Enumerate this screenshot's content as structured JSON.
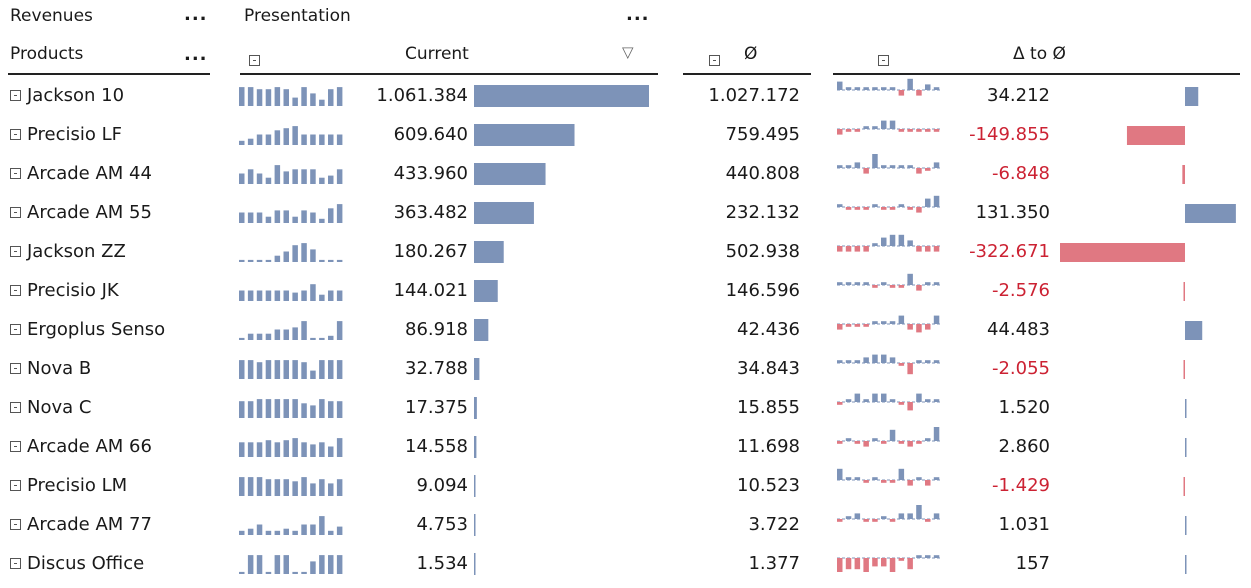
{
  "header": {
    "revenues": "Revenues",
    "revenues_more": "...",
    "products": "Products",
    "products_more": "...",
    "presentation": "Presentation",
    "presentation_more": "...",
    "current": "Current",
    "avg": "Ø",
    "delta": "Δ to Ø",
    "sort_icon": "▽"
  },
  "colors": {
    "positive": "#7d93b8",
    "negative": "#e07882",
    "neg_text": "#cc2233"
  },
  "rows": [
    {
      "name": "Jackson 10",
      "current": 1061384,
      "current_label": "1.061.384",
      "avg": 1027172,
      "avg_label": "1.027.172",
      "delta": 34212,
      "delta_label": "34.212",
      "spark": [
        9,
        9,
        8,
        8,
        9,
        8,
        4,
        9,
        6,
        3,
        8,
        9
      ],
      "dev": [
        3,
        1,
        1,
        1,
        1,
        1,
        1,
        -2,
        4,
        -2,
        2,
        1
      ]
    },
    {
      "name": "Precisio LF",
      "current": 609640,
      "current_label": "609.640",
      "avg": 759495,
      "avg_label": "759.495",
      "delta": -149855,
      "delta_label": "-149.855",
      "spark": [
        2,
        3,
        5,
        5,
        7,
        8,
        9,
        5,
        5,
        5,
        5,
        5
      ],
      "dev": [
        -2,
        -1,
        -1,
        1,
        1,
        3,
        3,
        -1,
        -1,
        -1,
        -1,
        -1
      ]
    },
    {
      "name": "Arcade AM 44",
      "current": 433960,
      "current_label": "433.960",
      "avg": 440808,
      "avg_label": "440.808",
      "delta": -6848,
      "delta_label": "-6.848",
      "spark": [
        5,
        7,
        5,
        3,
        9,
        6,
        7,
        7,
        7,
        3,
        4,
        7
      ],
      "dev": [
        1,
        1,
        2,
        -2,
        5,
        1,
        1,
        1,
        1,
        -2,
        -1,
        2
      ]
    },
    {
      "name": "Arcade AM 55",
      "current": 363482,
      "current_label": "363.482",
      "avg": 232132,
      "avg_label": "232.132",
      "delta": 131350,
      "delta_label": "131.350",
      "spark": [
        5,
        5,
        5,
        3,
        6,
        6,
        3,
        6,
        5,
        2,
        7,
        9
      ],
      "dev": [
        1,
        -1,
        -1,
        -1,
        1,
        -1,
        -1,
        1,
        -1,
        -2,
        3,
        4
      ]
    },
    {
      "name": "Jackson ZZ",
      "current": 180267,
      "current_label": "180.267",
      "avg": 502938,
      "avg_label": "502.938",
      "delta": -322671,
      "delta_label": "-322.671",
      "spark": [
        1,
        1,
        1,
        1,
        3,
        5,
        8,
        9,
        6,
        1,
        1,
        1
      ],
      "dev": [
        -2,
        -2,
        -2,
        -2,
        1,
        3,
        4,
        4,
        2,
        -2,
        -2,
        -2
      ]
    },
    {
      "name": "Precisio JK",
      "current": 144021,
      "current_label": "144.021",
      "avg": 146596,
      "avg_label": "146.596",
      "delta": -2576,
      "delta_label": "-2.576",
      "spark": [
        5,
        5,
        5,
        5,
        5,
        5,
        4,
        5,
        8,
        3,
        5,
        5
      ],
      "dev": [
        1,
        1,
        1,
        1,
        -1,
        1,
        -1,
        -1,
        4,
        -2,
        1,
        1
      ]
    },
    {
      "name": "Ergoplus Senso",
      "current": 86918,
      "current_label": "86.918",
      "avg": 42436,
      "avg_label": "42.436",
      "delta": 44483,
      "delta_label": "44.483",
      "spark": [
        1,
        3,
        3,
        3,
        5,
        5,
        6,
        9,
        1,
        1,
        2,
        9
      ],
      "dev": [
        -2,
        -1,
        -1,
        -1,
        1,
        1,
        1,
        3,
        -2,
        -3,
        -2,
        3
      ]
    },
    {
      "name": "Nova B",
      "current": 32788,
      "current_label": "32.788",
      "avg": 34843,
      "avg_label": "34.843",
      "delta": -2055,
      "delta_label": "-2.055",
      "spark": [
        9,
        9,
        8,
        9,
        9,
        9,
        9,
        8,
        4,
        9,
        9,
        9
      ],
      "dev": [
        1,
        1,
        1,
        2,
        3,
        3,
        2,
        -1,
        -4,
        1,
        1,
        1
      ]
    },
    {
      "name": "Nova C",
      "current": 17375,
      "current_label": "17.375",
      "avg": 15855,
      "avg_label": "15.855",
      "delta": 1520,
      "delta_label": "1.520",
      "spark": [
        8,
        8,
        9,
        9,
        9,
        9,
        9,
        7,
        6,
        9,
        8,
        8
      ],
      "dev": [
        -1,
        1,
        3,
        1,
        3,
        3,
        1,
        -1,
        -3,
        3,
        1,
        1
      ]
    },
    {
      "name": "Arcade AM 66",
      "current": 14558,
      "current_label": "14.558",
      "avg": 11698,
      "avg_label": "11.698",
      "delta": 2860,
      "delta_label": "2.860",
      "spark": [
        7,
        7,
        7,
        8,
        7,
        8,
        9,
        7,
        6,
        7,
        5,
        9
      ],
      "dev": [
        -1,
        1,
        -1,
        -2,
        1,
        -1,
        4,
        -1,
        -2,
        -1,
        1,
        5
      ]
    },
    {
      "name": "Precisio LM",
      "current": 9094,
      "current_label": "9.094",
      "avg": 10523,
      "avg_label": "10.523",
      "delta": -1429,
      "delta_label": "-1.429",
      "spark": [
        9,
        9,
        9,
        8,
        8,
        8,
        7,
        9,
        6,
        8,
        6,
        8
      ],
      "dev": [
        4,
        1,
        1,
        -1,
        1,
        -1,
        -1,
        4,
        -2,
        1,
        -2,
        1
      ]
    },
    {
      "name": "Arcade AM 77",
      "current": 4753,
      "current_label": "4.753",
      "avg": 3722,
      "avg_label": "3.722",
      "delta": 1031,
      "delta_label": "1.031",
      "spark": [
        2,
        3,
        5,
        2,
        2,
        3,
        2,
        5,
        5,
        9,
        2,
        4
      ],
      "dev": [
        -1,
        1,
        2,
        -1,
        -1,
        1,
        -1,
        2,
        2,
        5,
        -1,
        2
      ]
    },
    {
      "name": "Discus Office",
      "current": 1534,
      "current_label": "1.534",
      "avg": 1377,
      "avg_label": "1.377",
      "delta": 157,
      "delta_label": "157",
      "spark": [
        1,
        9,
        9,
        1,
        9,
        9,
        1,
        1,
        6,
        9,
        9,
        9
      ],
      "dev": [
        -5,
        -4,
        -4,
        -5,
        -3,
        -3,
        -5,
        -1,
        -4,
        1,
        1,
        1
      ]
    }
  ]
}
